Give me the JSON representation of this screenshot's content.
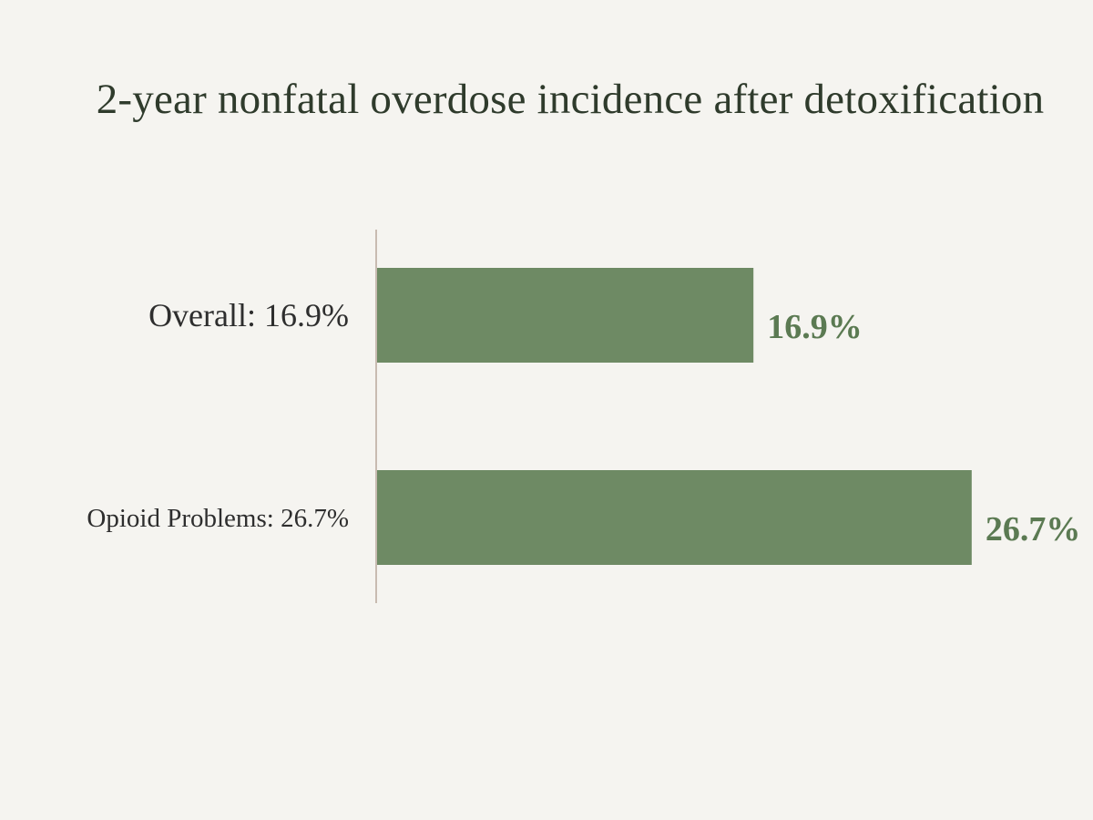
{
  "colors": {
    "background": "#f5f4f0",
    "bar": "#6e8a64",
    "value_label": "#5b7a52",
    "axis": "#b9a89c",
    "title": "#2f3b2c"
  },
  "chart_data": {
    "type": "bar",
    "orientation": "horizontal",
    "title": "2-year nonfatal overdose incidence after detoxification",
    "xlabel": "",
    "ylabel": "",
    "categories": [
      "Overall: 16.9%",
      "Opioid Problems: 26.7%"
    ],
    "values": [
      16.9,
      26.7
    ],
    "value_labels": [
      "16.9%",
      "26.7%"
    ],
    "unit": "%",
    "xlim": [
      0,
      30
    ],
    "grid": false,
    "legend": "none"
  }
}
